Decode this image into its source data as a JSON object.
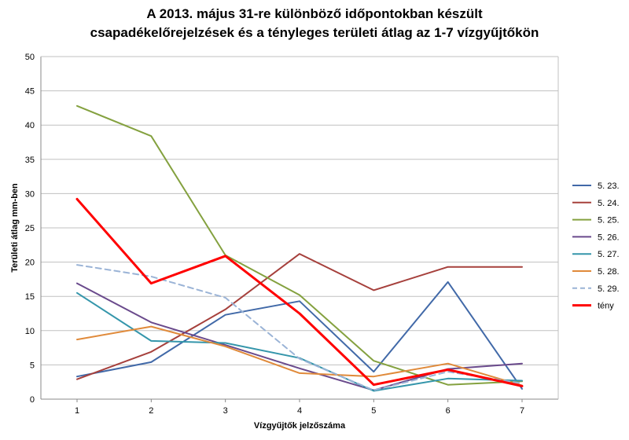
{
  "title_line1": "A 2013. május 31-re különböző időpontokban készült",
  "title_line2": "csapadékelőrejelzések és a tényleges területi átlag az 1-7 vízgyűjtőkön",
  "chart_data": {
    "type": "line",
    "title": "A 2013. május 31-re különböző időpontokban készült csapadékelőrejelzések és a tényleges területi átlag az 1-7 vízgyűjtőkön",
    "xlabel": "Vízgyűjtők jelzőszáma",
    "ylabel": "Területi átlag mm-ben",
    "x": [
      1,
      2,
      3,
      4,
      5,
      6,
      7
    ],
    "ylim": [
      0,
      50
    ],
    "yticks": [
      0,
      5,
      10,
      15,
      20,
      25,
      30,
      35,
      40,
      45,
      50
    ],
    "grid": true,
    "legend_position": "right",
    "series": [
      {
        "name": "5. 23.",
        "color": "#4169a8",
        "dashed": false,
        "bold": false,
        "values": [
          3.3,
          5.4,
          12.3,
          14.3,
          4.0,
          17.1,
          1.5
        ]
      },
      {
        "name": "5. 24.",
        "color": "#a6403c",
        "dashed": false,
        "bold": false,
        "values": [
          2.9,
          6.9,
          13.1,
          21.2,
          15.9,
          19.3,
          19.3
        ]
      },
      {
        "name": "5. 25.",
        "color": "#84a13f",
        "dashed": false,
        "bold": false,
        "values": [
          42.8,
          38.4,
          21.0,
          15.2,
          5.6,
          2.1,
          2.6
        ]
      },
      {
        "name": "5. 26.",
        "color": "#6a4a8c",
        "dashed": false,
        "bold": false,
        "values": [
          16.9,
          11.2,
          7.9,
          4.5,
          1.3,
          4.4,
          5.2
        ]
      },
      {
        "name": "5. 27.",
        "color": "#3596ab",
        "dashed": false,
        "bold": false,
        "values": [
          15.5,
          8.5,
          8.2,
          6.0,
          1.2,
          3.0,
          2.7
        ]
      },
      {
        "name": "5. 28.",
        "color": "#e08a3a",
        "dashed": false,
        "bold": false,
        "values": [
          8.7,
          10.6,
          7.7,
          3.8,
          3.3,
          5.2,
          2.0
        ]
      },
      {
        "name": "5. 29.",
        "color": "#9ab3d6",
        "dashed": true,
        "bold": false,
        "values": [
          19.6,
          17.9,
          14.8,
          5.9,
          1.3,
          4.0,
          2.3
        ]
      },
      {
        "name": "tény",
        "color": "#ff0000",
        "dashed": false,
        "bold": true,
        "values": [
          29.2,
          16.9,
          20.9,
          12.5,
          2.1,
          4.3,
          1.9
        ]
      }
    ]
  }
}
